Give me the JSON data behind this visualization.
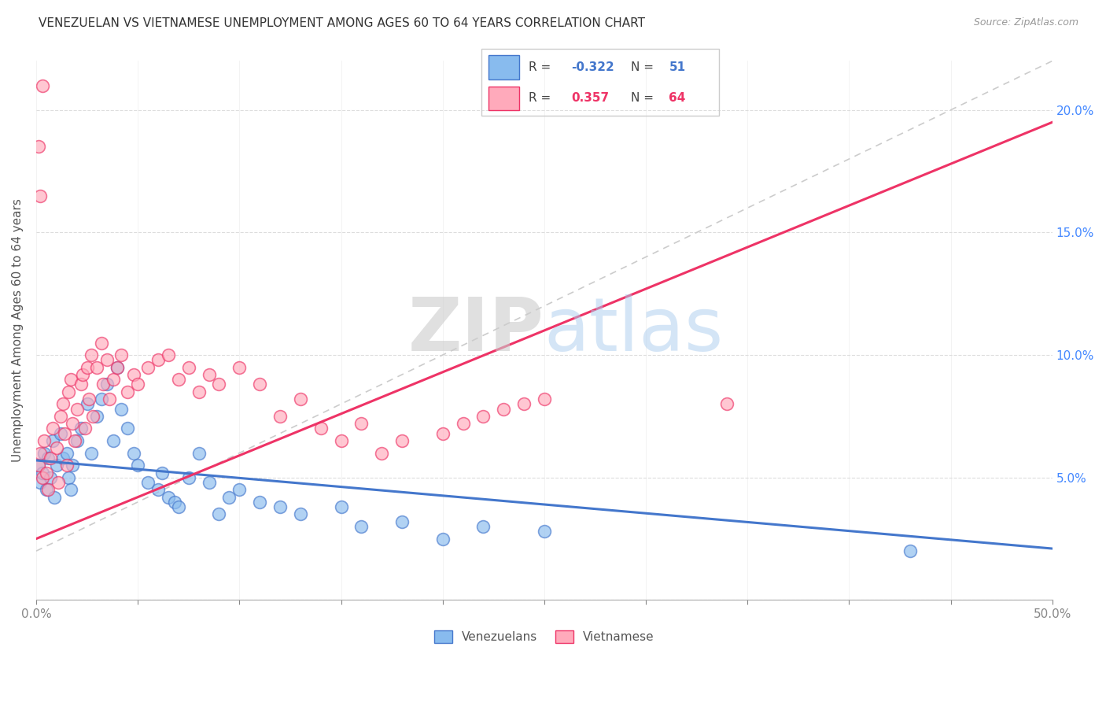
{
  "title": "VENEZUELAN VS VIETNAMESE UNEMPLOYMENT AMONG AGES 60 TO 64 YEARS CORRELATION CHART",
  "source": "Source: ZipAtlas.com",
  "ylabel": "Unemployment Among Ages 60 to 64 years",
  "xlim": [
    0,
    0.5
  ],
  "ylim": [
    0,
    0.22
  ],
  "blue_color": "#88BBEE",
  "pink_color": "#FFAABB",
  "blue_line_color": "#4477CC",
  "pink_line_color": "#EE3366",
  "legend_blue_R": "-0.322",
  "legend_blue_N": "51",
  "legend_pink_R": "0.357",
  "legend_pink_N": "64",
  "watermark_zip": "ZIP",
  "watermark_atlas": "atlas",
  "venezuelan_x": [
    0.001,
    0.002,
    0.003,
    0.004,
    0.005,
    0.006,
    0.007,
    0.008,
    0.009,
    0.01,
    0.012,
    0.013,
    0.015,
    0.016,
    0.017,
    0.018,
    0.02,
    0.022,
    0.025,
    0.027,
    0.03,
    0.032,
    0.035,
    0.038,
    0.04,
    0.042,
    0.045,
    0.048,
    0.05,
    0.055,
    0.06,
    0.062,
    0.065,
    0.068,
    0.07,
    0.075,
    0.08,
    0.085,
    0.09,
    0.095,
    0.1,
    0.11,
    0.12,
    0.13,
    0.15,
    0.16,
    0.18,
    0.2,
    0.22,
    0.25,
    0.43
  ],
  "venezuelan_y": [
    0.055,
    0.048,
    0.052,
    0.06,
    0.045,
    0.058,
    0.05,
    0.065,
    0.042,
    0.055,
    0.068,
    0.058,
    0.06,
    0.05,
    0.045,
    0.055,
    0.065,
    0.07,
    0.08,
    0.06,
    0.075,
    0.082,
    0.088,
    0.065,
    0.095,
    0.078,
    0.07,
    0.06,
    0.055,
    0.048,
    0.045,
    0.052,
    0.042,
    0.04,
    0.038,
    0.05,
    0.06,
    0.048,
    0.035,
    0.042,
    0.045,
    0.04,
    0.038,
    0.035,
    0.038,
    0.03,
    0.032,
    0.025,
    0.03,
    0.028,
    0.02
  ],
  "vietnamese_x": [
    0.001,
    0.002,
    0.003,
    0.004,
    0.005,
    0.006,
    0.007,
    0.008,
    0.01,
    0.011,
    0.012,
    0.013,
    0.014,
    0.015,
    0.016,
    0.017,
    0.018,
    0.019,
    0.02,
    0.022,
    0.023,
    0.024,
    0.025,
    0.026,
    0.027,
    0.028,
    0.03,
    0.032,
    0.033,
    0.035,
    0.036,
    0.038,
    0.04,
    0.042,
    0.045,
    0.048,
    0.05,
    0.055,
    0.06,
    0.065,
    0.07,
    0.075,
    0.08,
    0.085,
    0.09,
    0.1,
    0.11,
    0.12,
    0.13,
    0.14,
    0.15,
    0.16,
    0.17,
    0.18,
    0.2,
    0.21,
    0.22,
    0.23,
    0.24,
    0.25,
    0.001,
    0.002,
    0.34,
    0.003
  ],
  "vietnamese_y": [
    0.055,
    0.06,
    0.05,
    0.065,
    0.052,
    0.045,
    0.058,
    0.07,
    0.062,
    0.048,
    0.075,
    0.08,
    0.068,
    0.055,
    0.085,
    0.09,
    0.072,
    0.065,
    0.078,
    0.088,
    0.092,
    0.07,
    0.095,
    0.082,
    0.1,
    0.075,
    0.095,
    0.105,
    0.088,
    0.098,
    0.082,
    0.09,
    0.095,
    0.1,
    0.085,
    0.092,
    0.088,
    0.095,
    0.098,
    0.1,
    0.09,
    0.095,
    0.085,
    0.092,
    0.088,
    0.095,
    0.088,
    0.075,
    0.082,
    0.07,
    0.065,
    0.072,
    0.06,
    0.065,
    0.068,
    0.072,
    0.075,
    0.078,
    0.08,
    0.082,
    0.185,
    0.165,
    0.08,
    0.21
  ]
}
